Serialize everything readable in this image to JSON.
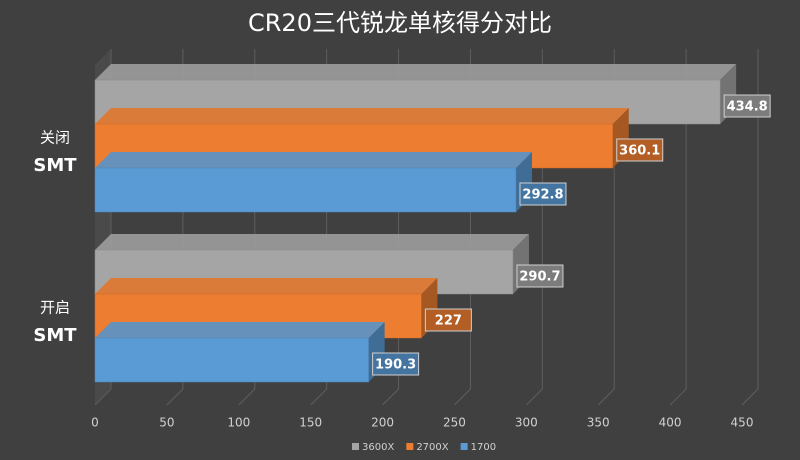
{
  "chart_data": {
    "type": "bar3d",
    "title": "CR20三代锐龙单核得分对比",
    "categories": [
      [
        "关闭",
        "SMT"
      ],
      [
        "开启",
        "SMT"
      ]
    ],
    "series": [
      {
        "name": "3600X",
        "color": "#a5a5a5",
        "values": [
          434.8,
          290.7
        ]
      },
      {
        "name": "2700X",
        "color": "#ed7d31",
        "values": [
          360.1,
          227
        ]
      },
      {
        "name": "1700",
        "color": "#5b9bd5",
        "values": [
          292.8,
          190.3
        ]
      }
    ],
    "xlim": [
      0,
      450
    ],
    "xticks": [
      0,
      50,
      100,
      150,
      200,
      250,
      300,
      350,
      400,
      450
    ],
    "grid": true
  }
}
